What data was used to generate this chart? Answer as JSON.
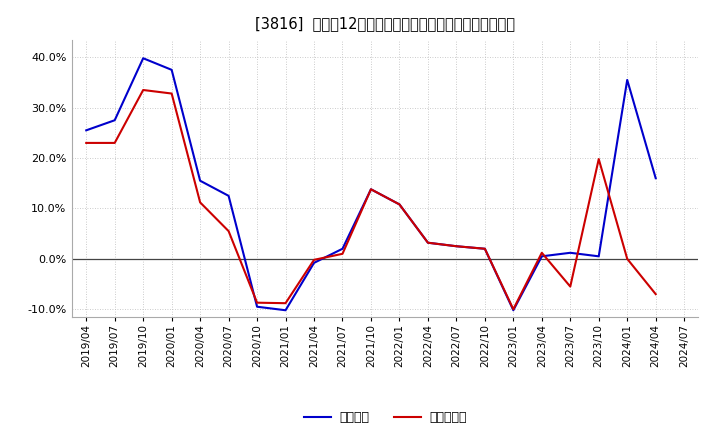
{
  "title": "[3816]  利益の12か月移動合計の対前年同期増減率の推移",
  "x_labels": [
    "2019/04",
    "2019/07",
    "2019/10",
    "2020/01",
    "2020/04",
    "2020/07",
    "2020/10",
    "2021/01",
    "2021/04",
    "2021/07",
    "2021/10",
    "2022/01",
    "2022/04",
    "2022/07",
    "2022/10",
    "2023/01",
    "2023/04",
    "2023/07",
    "2023/10",
    "2024/01",
    "2024/04",
    "2024/07"
  ],
  "keijo_rieki": [
    0.255,
    0.275,
    0.398,
    0.375,
    0.155,
    0.125,
    -0.095,
    -0.102,
    -0.008,
    0.02,
    0.138,
    0.108,
    0.032,
    0.025,
    0.02,
    -0.102,
    0.005,
    0.012,
    0.005,
    0.355,
    0.16,
    null
  ],
  "touki_junji_rieki": [
    0.23,
    0.23,
    0.335,
    0.328,
    0.112,
    0.055,
    -0.087,
    -0.088,
    -0.002,
    0.01,
    0.138,
    0.108,
    0.032,
    0.025,
    0.02,
    -0.1,
    0.012,
    -0.055,
    0.198,
    0.0,
    -0.07,
    null
  ],
  "keijo_color": "#0000cc",
  "touki_color": "#cc0000",
  "ylim_min": -0.115,
  "ylim_max": 0.435,
  "yticks": [
    -0.1,
    0.0,
    0.1,
    0.2,
    0.3,
    0.4
  ],
  "background_color": "#ffffff",
  "grid_color": "#bbbbbb",
  "legend_keijo": "経常利益",
  "legend_touki": "当期純利益"
}
